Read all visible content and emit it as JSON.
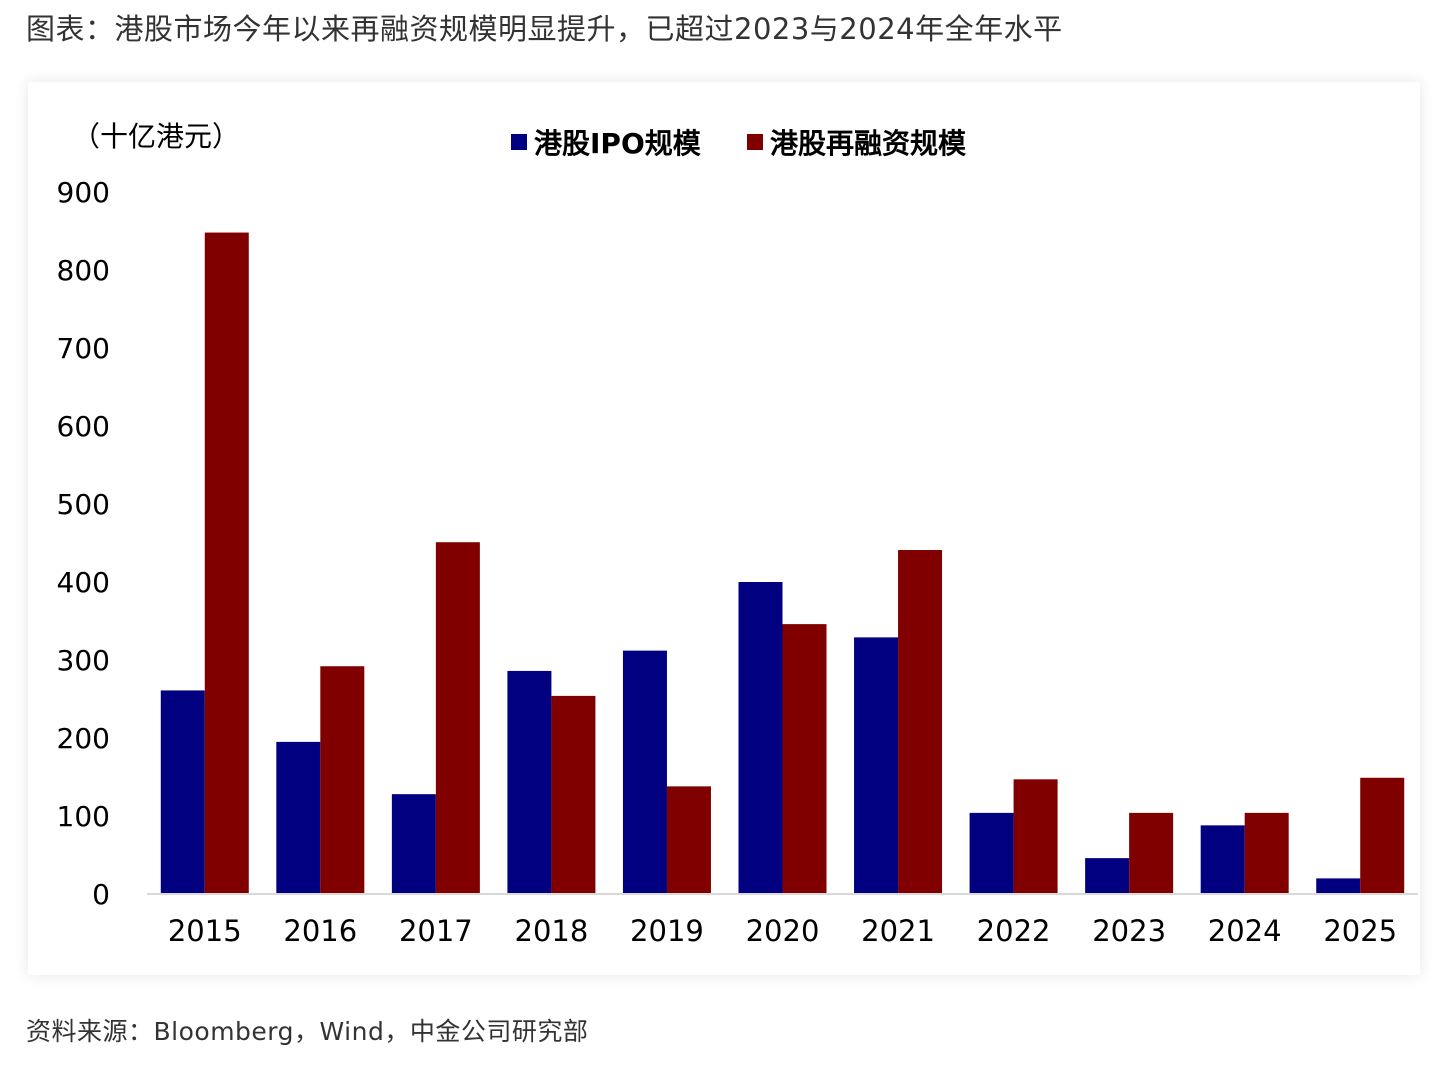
{
  "caption": "图表：港股市场今年以来再融资规模明显提升，已超过2023与2024年全年水平",
  "source": "资料来源：Bloomberg，Wind，中金公司研究部",
  "chart_data": {
    "type": "bar",
    "unit_label": "（十亿港元）",
    "categories": [
      "2015",
      "2016",
      "2017",
      "2018",
      "2019",
      "2020",
      "2021",
      "2022",
      "2023",
      "2024",
      "2025"
    ],
    "series": [
      {
        "name": "港股IPO规模",
        "color": "#000080",
        "values": [
          261,
          195,
          128,
          286,
          312,
          400,
          329,
          104,
          46,
          88,
          20
        ]
      },
      {
        "name": "港股再融资规模",
        "color": "#800000",
        "values": [
          848,
          292,
          451,
          254,
          138,
          346,
          441,
          147,
          104,
          104,
          149
        ]
      }
    ],
    "ylim": [
      0,
      900
    ],
    "yticks": [
      0,
      100,
      200,
      300,
      400,
      500,
      600,
      700,
      800,
      900
    ],
    "legend_position": "top-center",
    "grid": false
  }
}
